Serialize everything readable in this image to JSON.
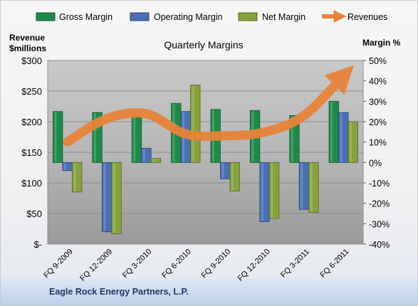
{
  "chart_data": {
    "type": "bar",
    "title": "Quarterly Margins",
    "company": "Eagle Rock Energy Partners, L.P.",
    "left_axis": {
      "label_line1": "Revenue",
      "label_line2": "$millions",
      "range": [
        0,
        300
      ],
      "ticks": [
        0,
        50,
        100,
        150,
        200,
        250,
        300
      ],
      "tick_labels": [
        "$-",
        "$50",
        "$100",
        "$150",
        "$200",
        "$250",
        "$300"
      ]
    },
    "right_axis": {
      "label": "Margin %",
      "range": [
        -40,
        50
      ],
      "ticks": [
        -40,
        -30,
        -20,
        -10,
        0,
        10,
        20,
        30,
        40,
        50
      ],
      "tick_labels": [
        "-40%",
        "-30%",
        "-20%",
        "-10%",
        "0%",
        "10%",
        "20%",
        "30%",
        "40%",
        "50%"
      ]
    },
    "categories": [
      "FQ 9-2009",
      "FQ 12-2009",
      "FQ 3-2010",
      "FQ 6-2010",
      "FQ 9-2010",
      "FQ 12-2010",
      "FQ 3-2011",
      "FQ 6-2011"
    ],
    "series": [
      {
        "name": "Gross Margin",
        "axis": "right",
        "kind": "bar",
        "color": "#1E8A48",
        "values": [
          25,
          24.5,
          23,
          29,
          26,
          25.5,
          23,
          30
        ]
      },
      {
        "name": "Operating Margin",
        "axis": "right",
        "kind": "bar",
        "color": "#4A6FB5",
        "values": [
          -4,
          -34,
          7,
          25,
          -8,
          -29,
          -23,
          24.5
        ]
      },
      {
        "name": "Net Margin",
        "axis": "right",
        "kind": "bar",
        "color": "#86A23E",
        "values": [
          -14.5,
          -35,
          2,
          38,
          -14,
          -27.5,
          -24.5,
          20
        ]
      },
      {
        "name": "Revenues",
        "axis": "left",
        "kind": "line",
        "color": "#E8843A",
        "values": [
          167,
          205,
          213,
          180,
          177,
          183,
          210,
          275
        ]
      }
    ],
    "grid": true,
    "legend_position": "top"
  }
}
